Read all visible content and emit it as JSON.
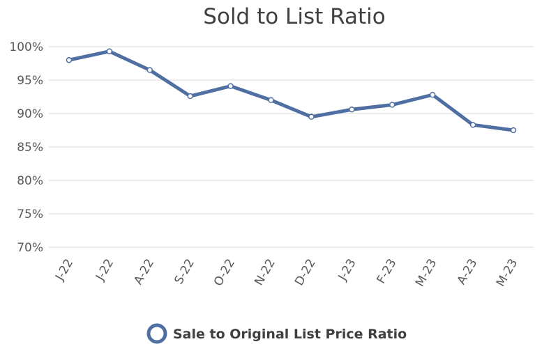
{
  "chart_data": {
    "type": "line",
    "title": "Sold to List Ratio",
    "xlabel": "",
    "ylabel": "",
    "categories": [
      "J-22",
      "J-22",
      "A-22",
      "S-22",
      "O-22",
      "N-22",
      "D-22",
      "J-23",
      "F-23",
      "M-23",
      "A-23",
      "M-23"
    ],
    "series": [
      {
        "name": "Sale to Original List Price Ratio",
        "values": [
          98.0,
          99.3,
          96.5,
          92.6,
          94.1,
          92.0,
          89.5,
          90.6,
          91.3,
          92.8,
          88.3,
          87.5
        ]
      }
    ],
    "ylim": [
      70,
      100
    ],
    "yticks": [
      "70%",
      "75%",
      "80%",
      "85%",
      "90%",
      "95%",
      "100%"
    ],
    "grid": true,
    "legend_position": "bottom",
    "colors": {
      "line": "#4f6fa3",
      "marker_fill": "#ffffff",
      "grid": "#d9d9d9"
    }
  }
}
